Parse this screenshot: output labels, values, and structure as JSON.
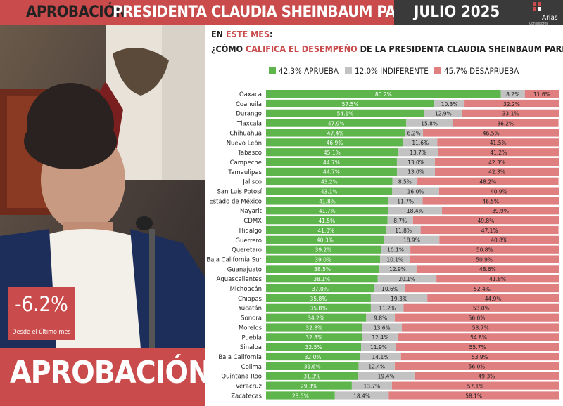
{
  "header": {
    "title_part1": "APROBACIÓN",
    "title_part2": "PRESIDENTA CLAUDIA SHEINBAUM PARDO",
    "date": "JULIO 2025",
    "logo_name": "Arias",
    "logo_sub": "Consultores"
  },
  "kpi": {
    "value": "-6.2%",
    "label": "Desde el último mes"
  },
  "bottom_label": "APROBACIÓN",
  "question": {
    "line1_prefix": "EN ",
    "line1_highlight": "ESTE MES",
    "line1_suffix": ":",
    "line2_prefix": "¿CÓMO ",
    "line2_highlight": "CALIFICA EL DESEMPEÑO",
    "line2_suffix": " DE LA PRESIDENTA CLAUDIA SHEINBAUM PARDO?"
  },
  "colors": {
    "approve": "#5db54c",
    "indifferent": "#c2c2c2",
    "disapprove": "#e07f80",
    "accent": "#c94b4b"
  },
  "chart_data": {
    "type": "bar",
    "orientation": "horizontal",
    "stacked": true,
    "title": "¿CÓMO CALIFICA EL DESEMPEÑO DE LA PRESIDENTA CLAUDIA SHEINBAUM PARDO?",
    "legend": [
      "42.3% APRUEBA",
      "12.0% INDIFERENTE",
      "45.7% DESAPRUEBA"
    ],
    "legend_position": "top",
    "categories": [
      "Oaxaca",
      "Coahuila",
      "Durango",
      "Tlaxcala",
      "Chihuahua",
      "Nuevo León",
      "Tabasco",
      "Campeche",
      "Tamaulipas",
      "Jalisco",
      "San Luis Potosí",
      "Estado de México",
      "Nayarit",
      "CDMX",
      "Hidalgo",
      "Guerrero",
      "Querétaro",
      "Baja California Sur",
      "Guanajuato",
      "Aguascalientes",
      "Michoacán",
      "Chiapas",
      "Yucatán",
      "Sonora",
      "Morelos",
      "Puebla",
      "Sinaloa",
      "Baja California",
      "Colima",
      "Quintana Roo",
      "Veracruz",
      "Zacatecas"
    ],
    "series": [
      {
        "name": "42.3% APRUEBA",
        "values": [
          80.2,
          57.5,
          54.1,
          47.9,
          47.4,
          46.9,
          45.1,
          44.7,
          44.7,
          43.2,
          43.1,
          41.8,
          41.7,
          41.5,
          41.0,
          40.3,
          39.2,
          39.0,
          38.5,
          38.1,
          37.0,
          35.8,
          35.8,
          34.2,
          32.8,
          32.8,
          32.5,
          32.0,
          31.6,
          31.3,
          29.3,
          23.5
        ]
      },
      {
        "name": "12.0% INDIFERENTE",
        "values": [
          8.2,
          10.3,
          12.9,
          15.8,
          6.2,
          11.6,
          13.7,
          13.0,
          13.0,
          8.5,
          16.0,
          11.7,
          18.4,
          8.7,
          11.8,
          18.9,
          10.1,
          10.1,
          12.9,
          20.1,
          10.6,
          19.3,
          11.2,
          9.8,
          13.6,
          12.4,
          11.9,
          14.1,
          12.4,
          19.4,
          13.7,
          18.4
        ]
      },
      {
        "name": "45.7% DESAPRUEBA",
        "values": [
          11.6,
          32.2,
          33.1,
          36.2,
          46.5,
          41.5,
          41.2,
          42.3,
          42.3,
          48.2,
          40.9,
          46.5,
          39.9,
          49.8,
          47.1,
          40.8,
          50.8,
          50.9,
          48.6,
          41.8,
          52.4,
          44.9,
          53.0,
          56.0,
          53.7,
          54.8,
          55.7,
          53.9,
          56.0,
          49.3,
          57.1,
          58.1
        ]
      }
    ],
    "xlim": [
      0,
      100
    ],
    "grid": false
  }
}
